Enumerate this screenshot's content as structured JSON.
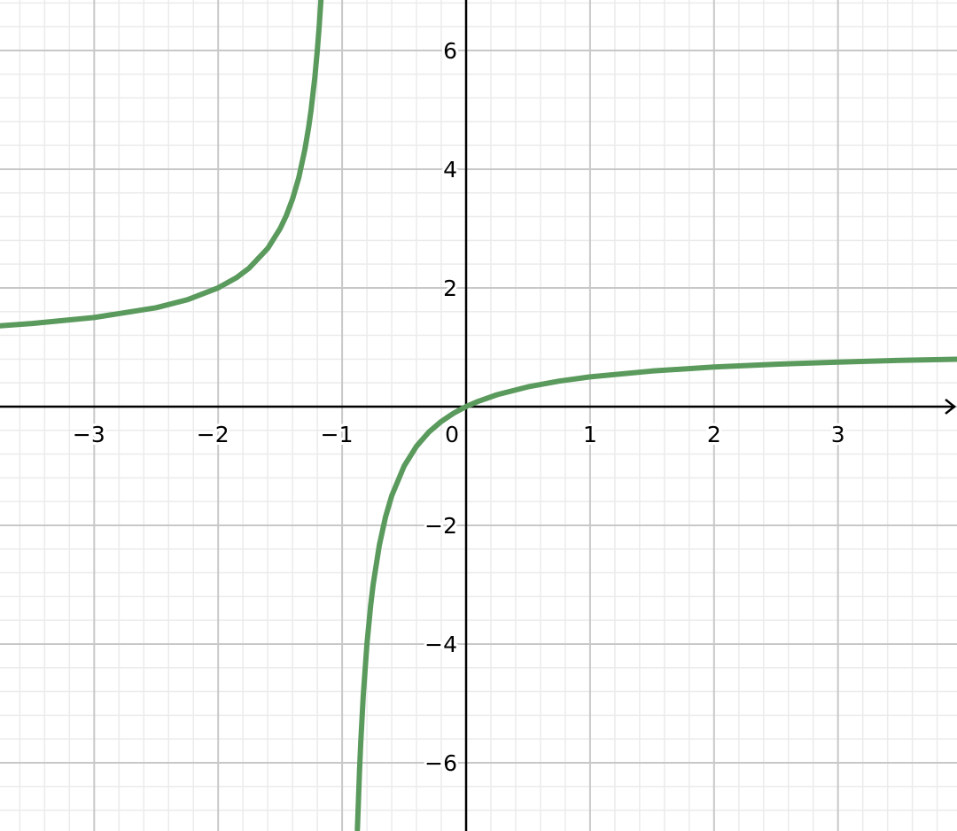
{
  "chart_data": {
    "type": "line",
    "title": "",
    "xlabel": "",
    "ylabel": "",
    "xlim": [
      -3.76,
      3.96
    ],
    "ylim": [
      -7.15,
      6.85
    ],
    "grid": true,
    "x_major_step": 1,
    "y_major_step": 2,
    "x_minor_step": 0.2,
    "y_minor_step": 0.4,
    "x_tick_labels": [
      "−3",
      "−2",
      "−1",
      "0",
      "1",
      "2",
      "3"
    ],
    "x_tick_values": [
      -3,
      -2,
      -1,
      0,
      1,
      2,
      3
    ],
    "y_tick_labels": [
      "−6",
      "−4",
      "−2",
      "2",
      "4",
      "6"
    ],
    "y_tick_values": [
      -6,
      -4,
      -2,
      2,
      4,
      6
    ],
    "colors": {
      "curve": "#5b9a5d",
      "axis": "#000000",
      "major_grid": "#c8c8c8",
      "minor_grid": "#ebebeb"
    },
    "series": [
      {
        "branch": "left",
        "x": [
          -3.76,
          -3.5,
          -3,
          -2.5,
          -2.25,
          -2,
          -1.85,
          -1.75,
          -1.6,
          -1.5,
          -1.45,
          -1.4,
          -1.35,
          -1.3,
          -1.27,
          -1.25,
          -1.22,
          -1.2,
          -1.185,
          -1.171
        ],
        "y": [
          1.362,
          1.4,
          1.5,
          1.667,
          1.8,
          2,
          2.176,
          2.333,
          2.667,
          3,
          3.222,
          3.5,
          3.857,
          4.333,
          4.704,
          5,
          5.545,
          6,
          6.405,
          6.85
        ]
      },
      {
        "branch": "right",
        "x": [
          -0.877,
          -0.86,
          -0.85,
          -0.83,
          -0.8,
          -0.77,
          -0.75,
          -0.7,
          -0.65,
          -0.6,
          -0.5,
          -0.4,
          -0.3,
          -0.2,
          -0.1,
          0,
          0.1,
          0.25,
          0.5,
          0.75,
          1,
          1.5,
          2,
          2.5,
          3,
          3.5,
          3.96
        ],
        "y": [
          -7.13,
          -6.143,
          -5.667,
          -4.882,
          -4,
          -3.348,
          -3,
          -2.333,
          -1.857,
          -1.5,
          -1,
          -0.667,
          -0.429,
          -0.25,
          -0.111,
          0,
          0.091,
          0.2,
          0.333,
          0.429,
          0.5,
          0.6,
          0.667,
          0.714,
          0.75,
          0.778,
          0.798
        ]
      }
    ]
  }
}
